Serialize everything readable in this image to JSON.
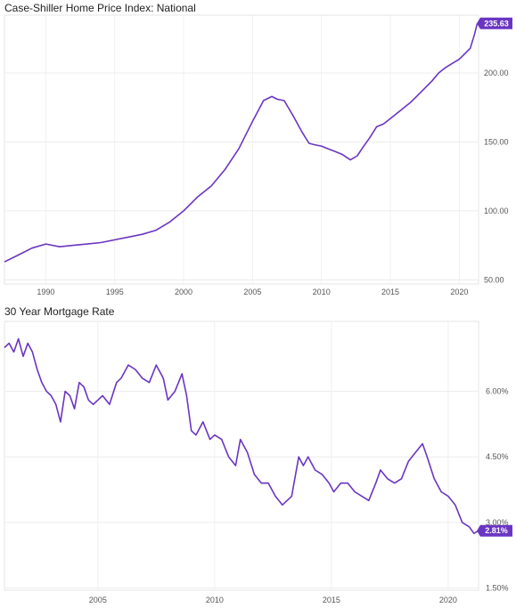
{
  "chart_data": [
    {
      "type": "line",
      "title": "Case-Shiller Home Price Index: National",
      "line_color": "#6a35c2",
      "grid": true,
      "xlim": [
        1987.0,
        2021.4
      ],
      "ylim": [
        47,
        242
      ],
      "x_ticks": [
        1990,
        1995,
        2000,
        2005,
        2010,
        2015,
        2020
      ],
      "y_ticks": [
        50,
        100,
        150,
        200
      ],
      "y_tick_labels": [
        "50.00",
        "100.00",
        "150.00",
        "200.00"
      ],
      "last_value_label": "235.63",
      "series": [
        {
          "x": [
            1987.0,
            1988.0,
            1989.0,
            1990.0,
            1991.0,
            1992.0,
            1993.0,
            1994.0,
            1995.0,
            1996.0,
            1997.0,
            1998.0,
            1999.0,
            2000.0,
            2001.0,
            2002.0,
            2003.0,
            2004.0,
            2005.0,
            2005.8,
            2006.4,
            2006.8,
            2007.3,
            2008.0,
            2008.6,
            2009.1,
            2009.5,
            2010.0,
            2010.5,
            2011.0,
            2011.5,
            2012.1,
            2012.6,
            2013.0,
            2013.5,
            2014.0,
            2014.5,
            2015.0,
            2015.5,
            2016.0,
            2016.5,
            2017.0,
            2017.5,
            2018.0,
            2018.5,
            2019.0,
            2019.5,
            2020.0,
            2020.4,
            2020.8,
            2021.1,
            2021.3
          ],
          "y": [
            63,
            68,
            73,
            76,
            74,
            75,
            76,
            77,
            79,
            81,
            83,
            86,
            92,
            100,
            110,
            118,
            130,
            145,
            165,
            180,
            183,
            181,
            180,
            168,
            157,
            149,
            148,
            147,
            145,
            143,
            141,
            137,
            140,
            146,
            153,
            161,
            163,
            167,
            171,
            175,
            179,
            184,
            189,
            194,
            200,
            204,
            207,
            210,
            214,
            218,
            228,
            236
          ]
        }
      ]
    },
    {
      "type": "line",
      "title": "30 Year Mortgage Rate",
      "line_color": "#6a35c2",
      "grid": true,
      "xlim": [
        2001.0,
        2021.3
      ],
      "ylim": [
        1.45,
        7.6
      ],
      "x_ticks": [
        2005,
        2010,
        2015,
        2020
      ],
      "y_ticks": [
        1.5,
        3.0,
        4.5,
        6.0
      ],
      "y_tick_labels": [
        "1.50%",
        "3.00%",
        "4.50%",
        "6.00%"
      ],
      "last_value_label": "2.81%",
      "series": [
        {
          "x": [
            2001.0,
            2001.2,
            2001.4,
            2001.6,
            2001.8,
            2002.0,
            2002.2,
            2002.4,
            2002.6,
            2002.8,
            2003.0,
            2003.2,
            2003.4,
            2003.6,
            2003.8,
            2004.0,
            2004.2,
            2004.4,
            2004.6,
            2004.8,
            2005.0,
            2005.2,
            2005.5,
            2005.8,
            2006.0,
            2006.3,
            2006.6,
            2006.9,
            2007.2,
            2007.5,
            2007.8,
            2008.0,
            2008.3,
            2008.6,
            2008.8,
            2009.0,
            2009.2,
            2009.5,
            2009.8,
            2010.0,
            2010.3,
            2010.6,
            2010.9,
            2011.1,
            2011.4,
            2011.7,
            2012.0,
            2012.3,
            2012.6,
            2012.9,
            2013.1,
            2013.3,
            2013.6,
            2013.8,
            2014.0,
            2014.3,
            2014.6,
            2014.9,
            2015.1,
            2015.4,
            2015.7,
            2016.0,
            2016.3,
            2016.6,
            2016.9,
            2017.1,
            2017.4,
            2017.7,
            2018.0,
            2018.3,
            2018.6,
            2018.9,
            2019.1,
            2019.4,
            2019.7,
            2020.0,
            2020.3,
            2020.6,
            2020.9,
            2021.1,
            2021.3
          ],
          "y": [
            7.0,
            7.1,
            6.9,
            7.2,
            6.8,
            7.1,
            6.9,
            6.5,
            6.2,
            6.0,
            5.9,
            5.7,
            5.3,
            6.0,
            5.9,
            5.6,
            6.2,
            6.1,
            5.8,
            5.7,
            5.8,
            5.9,
            5.7,
            6.2,
            6.3,
            6.6,
            6.5,
            6.3,
            6.2,
            6.6,
            6.3,
            5.8,
            6.0,
            6.4,
            5.9,
            5.1,
            5.0,
            5.3,
            4.9,
            5.0,
            4.9,
            4.5,
            4.3,
            4.9,
            4.6,
            4.1,
            3.9,
            3.9,
            3.6,
            3.4,
            3.5,
            3.6,
            4.5,
            4.3,
            4.5,
            4.2,
            4.1,
            3.9,
            3.7,
            3.9,
            3.9,
            3.7,
            3.6,
            3.5,
            3.9,
            4.2,
            4.0,
            3.9,
            4.0,
            4.4,
            4.6,
            4.8,
            4.5,
            4.0,
            3.7,
            3.6,
            3.4,
            3.0,
            2.9,
            2.75,
            2.81
          ]
        }
      ]
    }
  ]
}
